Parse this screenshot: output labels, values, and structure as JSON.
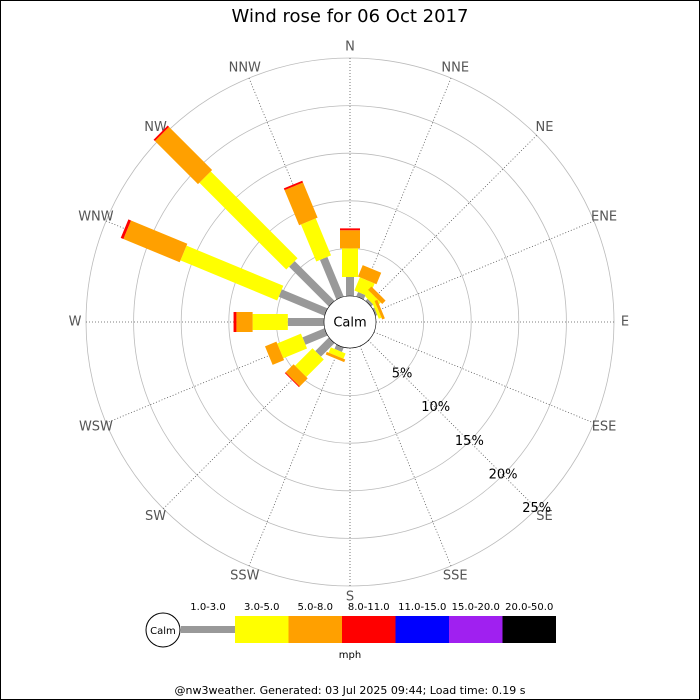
{
  "chart_data": {
    "type": "windrose",
    "title": "Wind rose for 06 Oct 2017",
    "categories": [
      "N",
      "NNE",
      "NE",
      "ENE",
      "E",
      "ESE",
      "SE",
      "SSE",
      "S",
      "SSW",
      "SW",
      "WSW",
      "W",
      "WNW",
      "NW",
      "NNW"
    ],
    "series": [
      {
        "name": "1.0-3.0",
        "color": "#999999",
        "values": [
          2.0,
          0.5,
          0.3,
          0.2,
          0,
          0,
          0,
          0,
          0,
          0.5,
          2.0,
          2.5,
          3.8,
          5.2,
          5.9,
          4.5
        ]
      },
      {
        "name": "3.0-5.0",
        "color": "#ffff00",
        "values": [
          3.0,
          1.5,
          0.7,
          0.3,
          0,
          0,
          0,
          0,
          0,
          0.6,
          2.6,
          2.7,
          3.7,
          11.0,
          12.9,
          4.2
        ]
      },
      {
        "name": "5.0-8.0",
        "color": "#ffa000",
        "values": [
          1.9,
          1.3,
          0.5,
          0.3,
          0,
          0,
          0,
          0,
          0,
          0.3,
          1.2,
          1.3,
          1.7,
          6.4,
          6.4,
          4.0
        ]
      },
      {
        "name": "8.0-11.0",
        "color": "#ff0000",
        "values": [
          0.2,
          0,
          0,
          0,
          0,
          0,
          0,
          0,
          0,
          0,
          0.1,
          0,
          0.3,
          0.3,
          0.2,
          0.2
        ]
      },
      {
        "name": "11.0-15.0",
        "color": "#0000ff",
        "values": [
          0,
          0,
          0,
          0,
          0,
          0,
          0,
          0,
          0,
          0,
          0,
          0,
          0,
          0,
          0,
          0
        ]
      },
      {
        "name": "15.0-20.0",
        "color": "#a020f0",
        "values": [
          0,
          0,
          0,
          0,
          0,
          0,
          0,
          0,
          0,
          0,
          0,
          0,
          0,
          0,
          0,
          0
        ]
      },
      {
        "name": "20.0-50.0",
        "color": "#000000",
        "values": [
          0,
          0,
          0,
          0,
          0,
          0,
          0,
          0,
          0,
          0,
          0,
          0,
          0,
          0,
          0,
          0
        ]
      }
    ],
    "rlim": [
      0,
      25
    ],
    "rticks": [
      {
        "value": 5,
        "label": "5%"
      },
      {
        "value": 10,
        "label": "10%"
      },
      {
        "value": 15,
        "label": "15%"
      },
      {
        "value": 20,
        "label": "20%"
      },
      {
        "value": 25,
        "label": "25%"
      }
    ],
    "calm_label": "Calm",
    "legend_unit": "mph",
    "footer": "@nw3weather. Generated: 03 Jul 2025 09:44; Load time: 0.19 s"
  }
}
